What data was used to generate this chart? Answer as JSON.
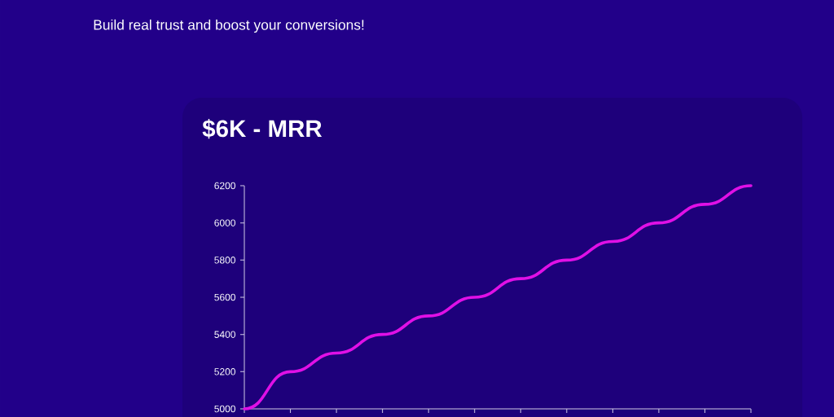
{
  "chart_data": {
    "type": "line",
    "title": "$6K - MRR",
    "annotations": [
      "Build real trust and boost your conversions!"
    ],
    "categories": [
      null,
      null,
      null,
      null,
      null,
      null,
      null,
      null,
      null,
      null,
      null,
      null
    ],
    "series": [
      {
        "color": "#e010e6",
        "values": [
          5000,
          5200,
          5300,
          5400,
          5500,
          5600,
          5700,
          5800,
          5900,
          6000,
          6100,
          6200
        ]
      }
    ],
    "ylim": [
      5000,
      6200
    ],
    "yticks": [
      5000,
      5200,
      5400,
      5600,
      5800,
      6000,
      6200
    ]
  }
}
